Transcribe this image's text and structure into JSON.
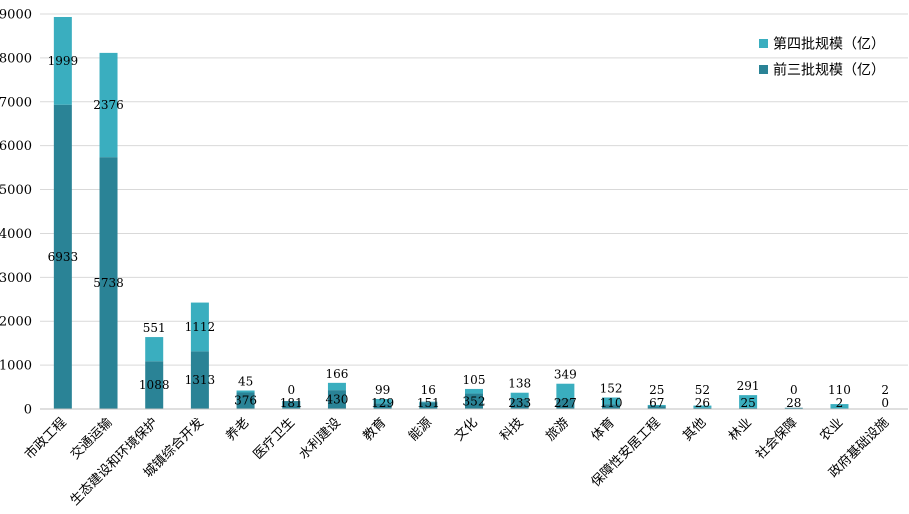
{
  "chart_data": {
    "type": "bar",
    "stacked": true,
    "categories": [
      "市政工程",
      "交通运输",
      "生态建设和环境保护",
      "城镇综合开发",
      "养老",
      "医疗卫生",
      "水利建设",
      "教育",
      "能源",
      "文化",
      "科技",
      "旅游",
      "体育",
      "保障性安居工程",
      "其他",
      "林业",
      "社会保障",
      "农业",
      "政府基础设施"
    ],
    "series": [
      {
        "name": "前三批规模（亿）",
        "color": "#2a8396",
        "values": [
          6933,
          5738,
          1088,
          1313,
          376,
          181,
          430,
          129,
          151,
          352,
          233,
          227,
          110,
          67,
          26,
          25,
          28,
          2,
          0
        ]
      },
      {
        "name": "第四批规模（亿）",
        "color": "#3aaebf",
        "values": [
          1999,
          2376,
          551,
          1112,
          45,
          0,
          166,
          99,
          16,
          105,
          138,
          349,
          152,
          25,
          52,
          291,
          0,
          110,
          2
        ]
      }
    ],
    "ylim": [
      0,
      9000
    ],
    "yticks": [
      0,
      1000,
      2000,
      3000,
      4000,
      5000,
      6000,
      7000,
      8000,
      9000
    ],
    "grid": true,
    "legend_position": "top-right"
  }
}
